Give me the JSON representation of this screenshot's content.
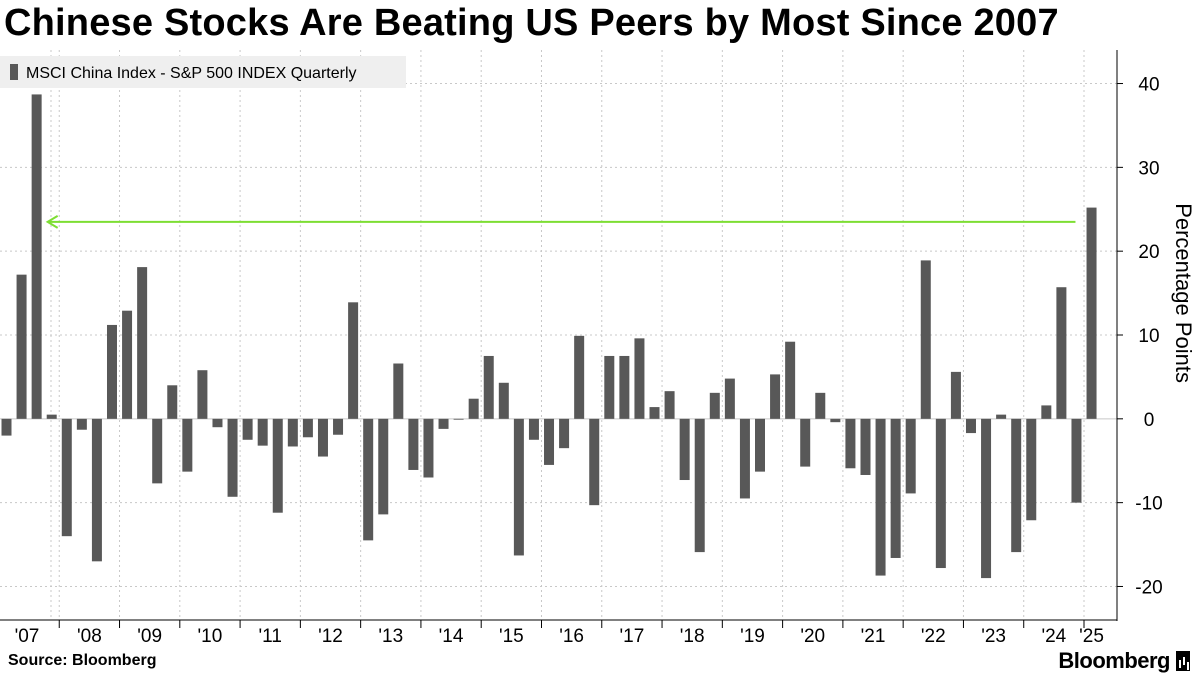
{
  "title": "Chinese Stocks Are Beating US Peers by Most Since 2007",
  "source": "Source: Bloomberg",
  "brand": "Bloomberg",
  "chart_data": {
    "type": "bar",
    "legend": "MSCI China Index - S&P 500 INDEX Quarterly",
    "legend_position": "top-left",
    "ylabel": "Percentage Points",
    "ylim": [
      -24,
      44
    ],
    "yticks": [
      40,
      30,
      20,
      10,
      0,
      -10,
      -20
    ],
    "ytick_labels": [
      "40",
      "30",
      "20",
      "10",
      "0",
      "-10",
      "-20"
    ],
    "year_labels": [
      "'07",
      "'08",
      "'09",
      "'10",
      "'11",
      "'12",
      "'13",
      "'14",
      "'15",
      "'16",
      "'17",
      "'18",
      "'19",
      "'20",
      "'21",
      "'22",
      "'23",
      "'24",
      "'25"
    ],
    "start_year": 2007,
    "annotation": {
      "type": "arrow",
      "y": 23.5,
      "from_category": "2024 Q4",
      "to_category": "2007 Q3",
      "color": "#7dde33"
    },
    "categories": [
      "2007 Q1",
      "2007 Q2",
      "2007 Q3",
      "2007 Q4",
      "2008 Q1",
      "2008 Q2",
      "2008 Q3",
      "2008 Q4",
      "2009 Q1",
      "2009 Q2",
      "2009 Q3",
      "2009 Q4",
      "2010 Q1",
      "2010 Q2",
      "2010 Q3",
      "2010 Q4",
      "2011 Q1",
      "2011 Q2",
      "2011 Q3",
      "2011 Q4",
      "2012 Q1",
      "2012 Q2",
      "2012 Q3",
      "2012 Q4",
      "2013 Q1",
      "2013 Q2",
      "2013 Q3",
      "2013 Q4",
      "2014 Q1",
      "2014 Q2",
      "2014 Q3",
      "2014 Q4",
      "2015 Q1",
      "2015 Q2",
      "2015 Q3",
      "2015 Q4",
      "2016 Q1",
      "2016 Q2",
      "2016 Q3",
      "2016 Q4",
      "2017 Q1",
      "2017 Q2",
      "2017 Q3",
      "2017 Q4",
      "2018 Q1",
      "2018 Q2",
      "2018 Q3",
      "2018 Q4",
      "2019 Q1",
      "2019 Q2",
      "2019 Q3",
      "2019 Q4",
      "2020 Q1",
      "2020 Q2",
      "2020 Q3",
      "2020 Q4",
      "2021 Q1",
      "2021 Q2",
      "2021 Q3",
      "2021 Q4",
      "2022 Q1",
      "2022 Q2",
      "2022 Q3",
      "2022 Q4",
      "2023 Q1",
      "2023 Q2",
      "2023 Q3",
      "2023 Q4",
      "2024 Q1",
      "2024 Q2",
      "2024 Q3",
      "2024 Q4",
      "2025 Q1"
    ],
    "values": [
      -2,
      17.2,
      38.7,
      0.5,
      -14,
      -1.3,
      -17,
      11.2,
      12.9,
      18.1,
      -7.7,
      4,
      -6.3,
      5.8,
      -1,
      -9.3,
      -2.5,
      -3.2,
      -11.2,
      -3.3,
      -2.2,
      -4.5,
      -1.9,
      13.9,
      -14.5,
      -11.4,
      6.6,
      -6.1,
      -7,
      -1.2,
      -0.1,
      2.4,
      7.5,
      4.3,
      -16.3,
      -2.5,
      -5.5,
      -3.5,
      9.9,
      -10.3,
      7.5,
      7.5,
      9.6,
      1.4,
      3.3,
      -7.3,
      -15.9,
      3.1,
      4.8,
      -9.5,
      -6.3,
      5.3,
      9.2,
      -5.7,
      3.1,
      -0.4,
      -5.9,
      -6.7,
      -18.7,
      -16.6,
      -8.9,
      18.9,
      -17.8,
      5.6,
      -1.7,
      -19,
      0.5,
      -15.9,
      -12.1,
      1.6,
      15.7,
      -10,
      25.2
    ]
  }
}
